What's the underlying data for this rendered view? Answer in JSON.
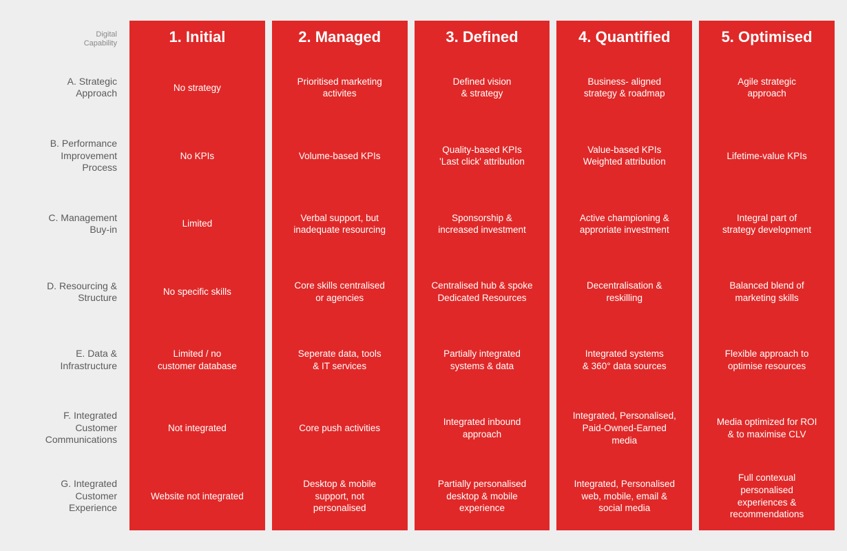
{
  "type": "matrix",
  "background_color": "#eeeeee",
  "stage_color": "#e02828",
  "stage_text_color": "#ffffff",
  "label_text_color": "#5a5a5a",
  "corner_label_color": "#888888",
  "header_fontsize": 22,
  "cell_fontsize": 13.5,
  "label_fontsize": 14,
  "corner_label": "Digital\nCapability",
  "rows": [
    {
      "label": "A. Strategic\nApproach"
    },
    {
      "label": "B. Performance\nImprovement\nProcess"
    },
    {
      "label": "C. Management\nBuy-in"
    },
    {
      "label": "D. Resourcing &\nStructure"
    },
    {
      "label": "E. Data &\nInfrastructure"
    },
    {
      "label": "F. Integrated\nCustomer\nCommunications"
    },
    {
      "label": "G. Integrated\nCustomer\nExperience"
    }
  ],
  "stages": [
    {
      "title": "1. Initial",
      "cells": [
        "No strategy",
        "No KPIs",
        "Limited",
        "No specific skills",
        "Limited / no\ncustomer database",
        "Not integrated",
        "Website not integrated"
      ]
    },
    {
      "title": "2. Managed",
      "cells": [
        "Prioritised marketing\nactivites",
        "Volume-based KPIs",
        "Verbal support, but\ninadequate resourcing",
        "Core skills centralised\nor agencies",
        "Seperate data, tools\n& IT services",
        "Core push activities",
        "Desktop & mobile\nsupport, not\npersonalised"
      ]
    },
    {
      "title": "3. Defined",
      "cells": [
        "Defined vision\n& strategy",
        "Quality-based KPIs\n'Last click' attribution",
        "Sponsorship &\nincreased investment",
        "Centralised hub & spoke\nDedicated Resources",
        "Partially integrated\nsystems & data",
        "Integrated inbound\napproach",
        "Partially personalised\ndesktop & mobile\nexperience"
      ]
    },
    {
      "title": "4. Quantified",
      "cells": [
        "Business- aligned\nstrategy & roadmap",
        "Value-based KPIs\nWeighted attribution",
        "Active championing &\napproriate investment",
        "Decentralisation &\nreskilling",
        "Integrated systems\n& 360° data sources",
        "Integrated, Personalised,\nPaid-Owned-Earned\nmedia",
        "Integrated, Personalised\nweb, mobile, email &\nsocial media"
      ]
    },
    {
      "title": "5. Optimised",
      "cells": [
        "Agile strategic\napproach",
        "Lifetime-value KPIs",
        "Integral part of\nstrategy development",
        "Balanced blend of\nmarketing skills",
        "Flexible approach to\noptimise resources",
        "Media optimized for ROI\n& to maximise CLV",
        "Full contexual\npersonalised\nexperiences &\nrecommendations"
      ]
    }
  ]
}
